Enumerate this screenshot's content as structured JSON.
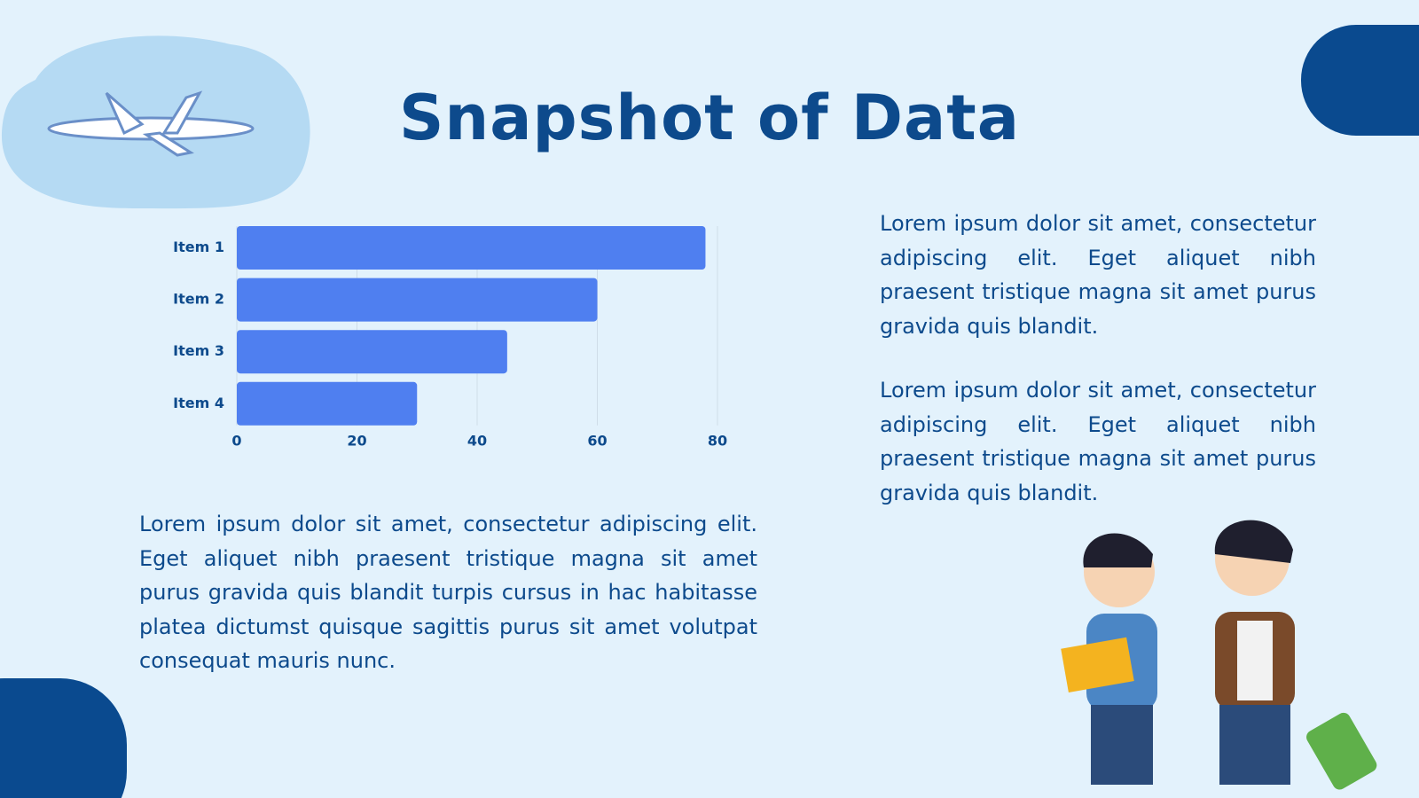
{
  "title": "Snapshot of Data",
  "chart_data": {
    "type": "bar",
    "categories": [
      "Item 1",
      "Item 2",
      "Item 3",
      "Item 4"
    ],
    "values": [
      78,
      60,
      45,
      30
    ],
    "color": "#4f7ff0",
    "xlim": [
      0,
      80
    ],
    "xticks": [
      0,
      20,
      40,
      60,
      80
    ],
    "grid": true
  },
  "paragraphs": [
    "Lorem ipsum dolor sit amet, consectetur adipiscing elit. Eget aliquet nibh praesent tristique magna sit amet purus gravida quis blandit.",
    "Lorem ipsum dolor sit amet, consectetur adipiscing elit. Eget aliquet nibh praesent tristique magna sit amet purus gravida quis blandit.",
    "Lorem ipsum dolor sit amet, consectetur adipiscing elit. Eget aliquet nibh praesent tristique magna sit amet purus gravida quis blandit turpis cursus in hac habitasse platea dictumst quisque sagittis purus sit amet volutpat consequat mauris nunc."
  ]
}
